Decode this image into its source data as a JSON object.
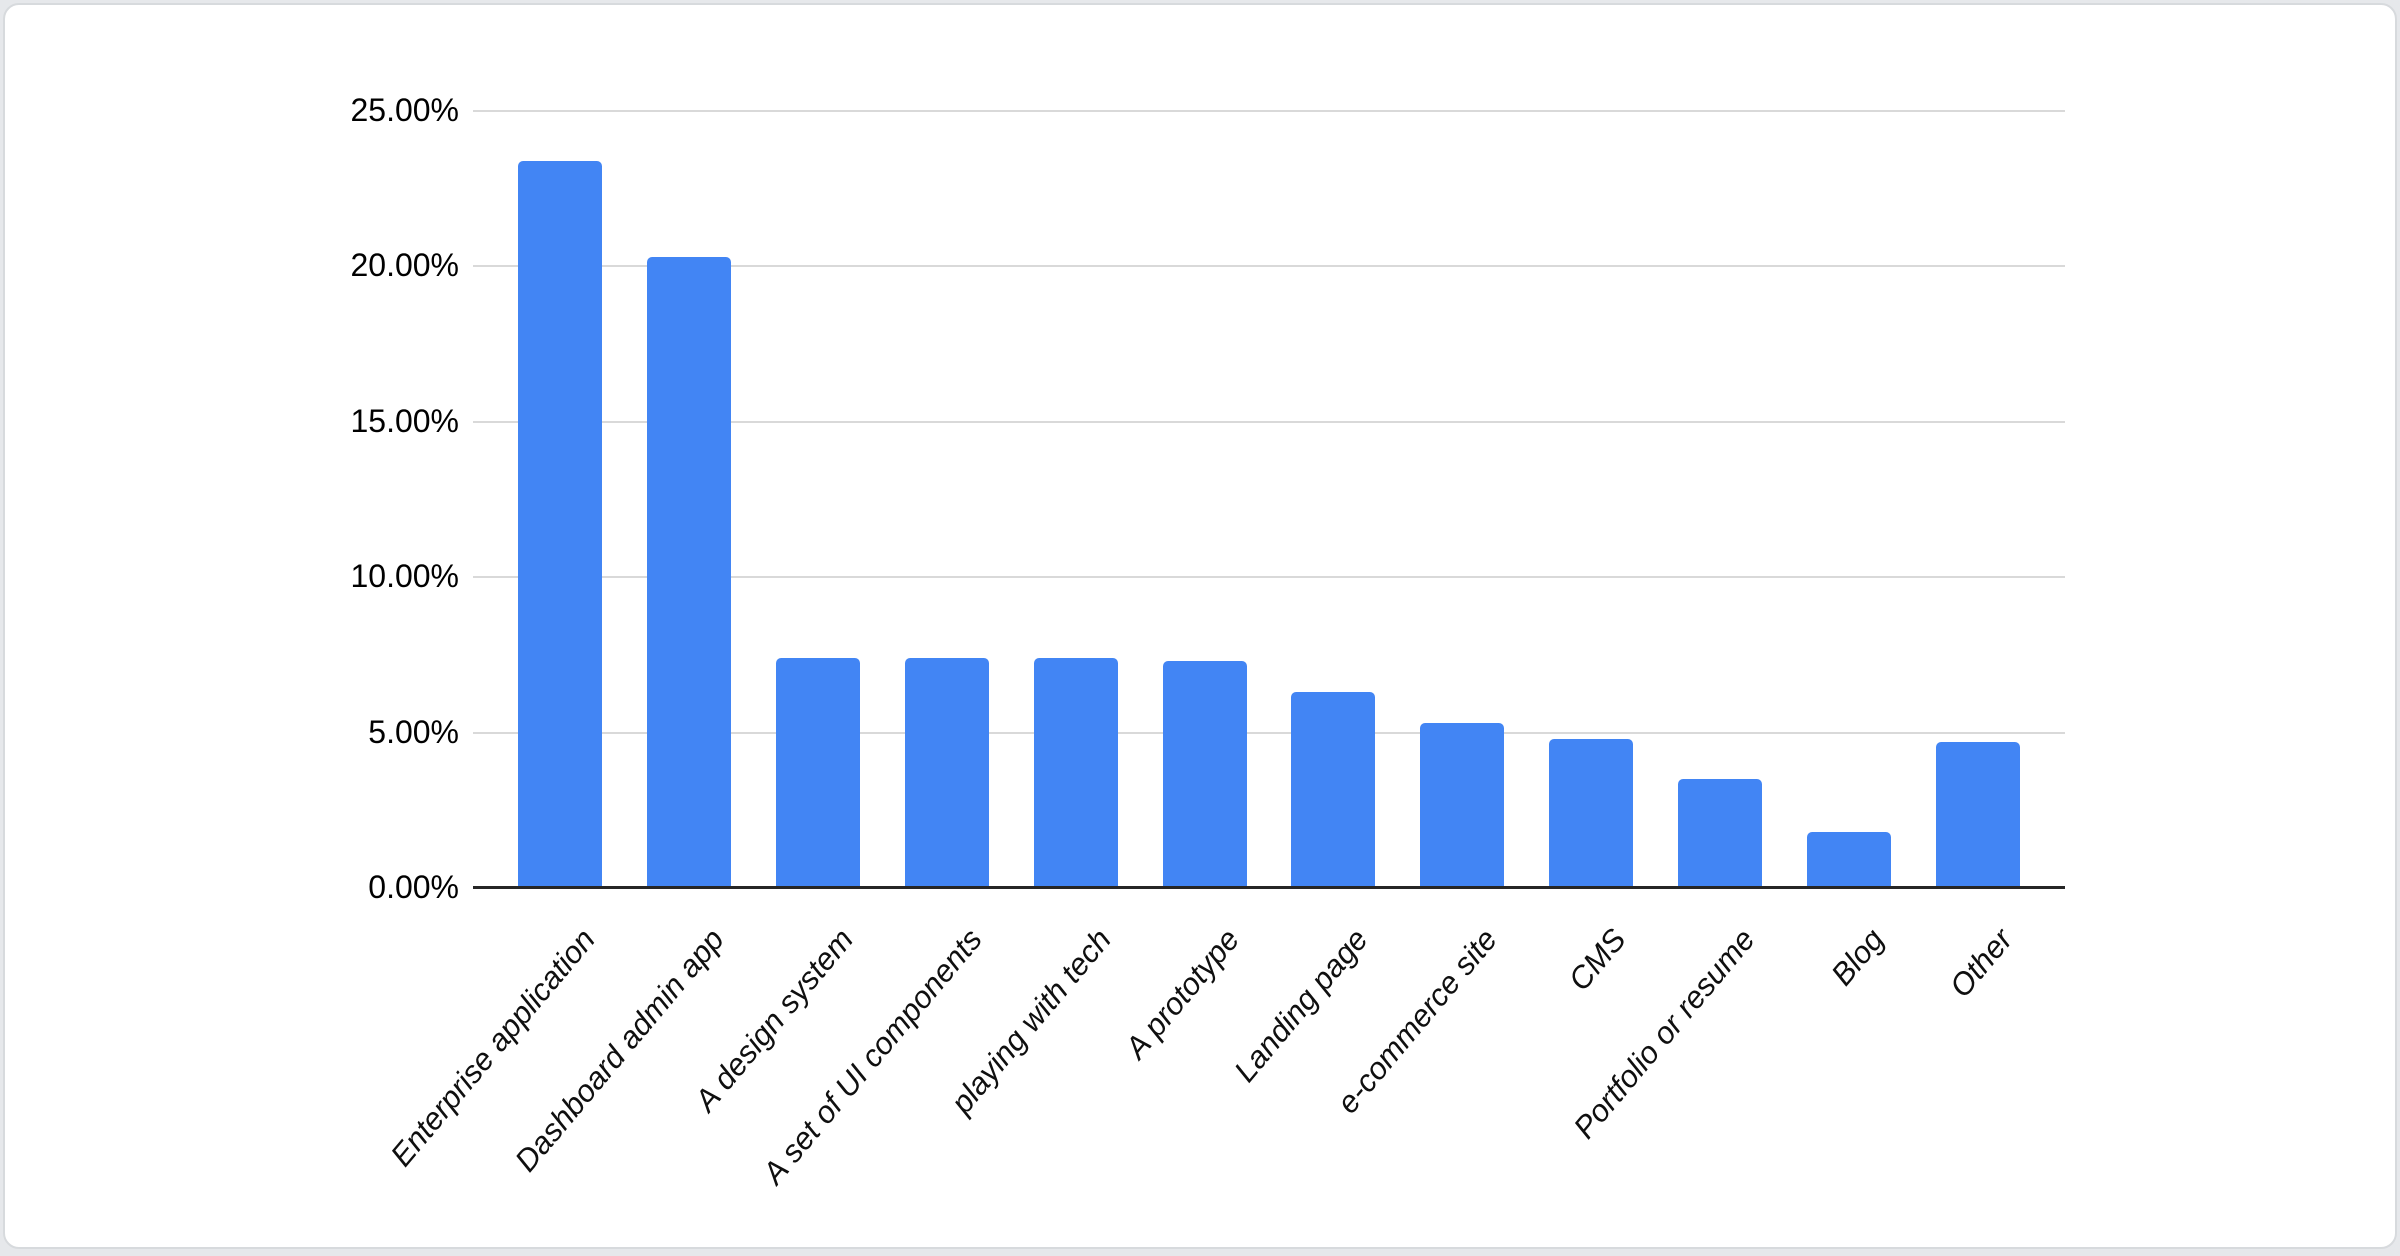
{
  "chart_data": {
    "type": "bar",
    "title": "",
    "xlabel": "",
    "ylabel": "",
    "categories": [
      "Enterprise application",
      "Dashboard admin app",
      "A design system",
      "A set of UI components",
      "playing with tech",
      "A prototype",
      "Landing page",
      "e-commerce site",
      "CMS",
      "Portfolio or resume",
      "Blog",
      "Other"
    ],
    "values": [
      23.4,
      20.3,
      7.4,
      7.4,
      7.4,
      7.3,
      6.3,
      5.3,
      4.8,
      3.5,
      1.8,
      4.7
    ],
    "value_unit": "%",
    "ylim": [
      0,
      25
    ],
    "ytick_step": 5,
    "ytick_labels": [
      "0.00%",
      "5.00%",
      "10.00%",
      "15.00%",
      "20.00%",
      "25.00%"
    ],
    "grid": true,
    "legend": false,
    "bar_color": "#4285F4",
    "gridline_color": "#d9d9d9",
    "axis_line_color": "#262626",
    "tick_label_color": "#000000",
    "category_label_color": "#0f0f0f",
    "category_label_style": "italic, rotated -50deg"
  },
  "page": {
    "background_color": "#e6e8eb",
    "card_background": "#ffffff",
    "card_border_color": "#d7dadd"
  }
}
